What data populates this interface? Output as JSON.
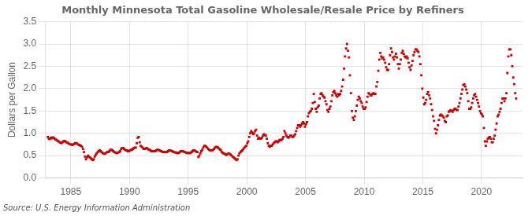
{
  "chart_data": {
    "type": "scatter",
    "title": "Monthly Minnesota Total Gasoline Wholesale/Resale Price by Refiners",
    "y_label": "Dollars per Gallon",
    "annotation": "Source: U.S. Energy Information Administration",
    "grid": true,
    "xlim": [
      1982.8,
      2023.5
    ],
    "xticks": [
      1985,
      1990,
      1995,
      2000,
      2005,
      2010,
      2015,
      2020
    ],
    "ylim": [
      0.0,
      3.5
    ],
    "yticks": [
      {
        "value": 0,
        "label": "0.0"
      },
      0.5,
      {
        "value": 1,
        "label": "1.0"
      },
      1.5,
      {
        "value": 2,
        "label": "2.0"
      },
      2.5,
      {
        "value": 3,
        "label": "3.0"
      },
      3.5
    ],
    "x": [
      1983.0416667,
      1983.125,
      1983.2083333,
      1983.2916667,
      1983.375,
      1983.4583333,
      1983.5416667,
      1983.625,
      1983.7083333,
      1983.7916667,
      1983.875,
      1983.9583333,
      1984.0416667,
      1984.125,
      1984.2083333,
      1984.2916667,
      1984.375,
      1984.4583333,
      1984.5416667,
      1984.625,
      1984.7083333,
      1984.7916667,
      1984.875,
      1984.9583333,
      1985.0416667,
      1985.125,
      1985.2083333,
      1985.2916667,
      1985.375,
      1985.4583333,
      1985.5416667,
      1985.625,
      1985.7083333,
      1985.7916667,
      1985.875,
      1985.9583333,
      1986.0416667,
      1986.125,
      1986.2083333,
      1986.2916667,
      1986.375,
      1986.4583333,
      1986.5416667,
      1986.625,
      1986.7083333,
      1986.7916667,
      1986.875,
      1986.9583333,
      1987.0416667,
      1987.125,
      1987.2083333,
      1987.2916667,
      1987.375,
      1987.4583333,
      1987.5416667,
      1987.625,
      1987.7083333,
      1987.7916667,
      1987.875,
      1987.9583333,
      1988.0416667,
      1988.125,
      1988.2083333,
      1988.2916667,
      1988.375,
      1988.4583333,
      1988.5416667,
      1988.625,
      1988.7083333,
      1988.7916667,
      1988.875,
      1988.9583333,
      1989.0416667,
      1989.125,
      1989.2083333,
      1989.2916667,
      1989.375,
      1989.4583333,
      1989.5416667,
      1989.625,
      1989.7083333,
      1989.7916667,
      1989.875,
      1989.9583333,
      1990.0416667,
      1990.125,
      1990.2083333,
      1990.2916667,
      1990.375,
      1990.4583333,
      1990.5416667,
      1990.625,
      1990.7083333,
      1990.7916667,
      1990.875,
      1990.9583333,
      1991.0416667,
      1991.125,
      1991.2083333,
      1991.2916667,
      1991.375,
      1991.4583333,
      1991.5416667,
      1991.625,
      1991.7083333,
      1991.7916667,
      1991.875,
      1991.9583333,
      1992.0416667,
      1992.125,
      1992.2083333,
      1992.2916667,
      1992.375,
      1992.4583333,
      1992.5416667,
      1992.625,
      1992.7083333,
      1992.7916667,
      1992.875,
      1992.9583333,
      1993.0416667,
      1993.125,
      1993.2083333,
      1993.2916667,
      1993.375,
      1993.4583333,
      1993.5416667,
      1993.625,
      1993.7083333,
      1993.7916667,
      1993.875,
      1993.9583333,
      1994.0416667,
      1994.125,
      1994.2083333,
      1994.2916667,
      1994.375,
      1994.4583333,
      1994.5416667,
      1994.625,
      1994.7083333,
      1994.7916667,
      1994.875,
      1994.9583333,
      1995.0416667,
      1995.125,
      1995.2083333,
      1995.2916667,
      1995.375,
      1995.4583333,
      1995.5416667,
      1995.625,
      1995.7083333,
      1995.7916667,
      1995.875,
      1995.9583333,
      1996.0416667,
      1996.125,
      1996.2083333,
      1996.2916667,
      1996.375,
      1996.4583333,
      1996.5416667,
      1996.625,
      1996.7083333,
      1996.7916667,
      1996.875,
      1996.9583333,
      1997.0416667,
      1997.125,
      1997.2083333,
      1997.2916667,
      1997.375,
      1997.4583333,
      1997.5416667,
      1997.625,
      1997.7083333,
      1997.7916667,
      1997.875,
      1997.9583333,
      1998.0416667,
      1998.125,
      1998.2083333,
      1998.2916667,
      1998.375,
      1998.4583333,
      1998.5416667,
      1998.625,
      1998.7083333,
      1998.7916667,
      1998.875,
      1998.9583333,
      1999.0416667,
      1999.125,
      1999.2083333,
      1999.2916667,
      1999.375,
      1999.4583333,
      1999.5416667,
      1999.625,
      1999.7083333,
      1999.7916667,
      1999.875,
      1999.9583333,
      2000.0416667,
      2000.125,
      2000.2083333,
      2000.2916667,
      2000.375,
      2000.4583333,
      2000.5416667,
      2000.625,
      2000.7083333,
      2000.7916667,
      2000.875,
      2000.9583333,
      2001.0416667,
      2001.125,
      2001.2083333,
      2001.2916667,
      2001.375,
      2001.4583333,
      2001.5416667,
      2001.625,
      2001.7083333,
      2001.7916667,
      2001.875,
      2001.9583333,
      2002.0416667,
      2002.125,
      2002.2083333,
      2002.2916667,
      2002.375,
      2002.4583333,
      2002.5416667,
      2002.625,
      2002.7083333,
      2002.7916667,
      2002.875,
      2002.9583333,
      2003.0416667,
      2003.125,
      2003.2083333,
      2003.2916667,
      2003.375,
      2003.4583333,
      2003.5416667,
      2003.625,
      2003.7083333,
      2003.7916667,
      2003.875,
      2003.9583333,
      2004.0416667,
      2004.125,
      2004.2083333,
      2004.2916667,
      2004.375,
      2004.4583333,
      2004.5416667,
      2004.625,
      2004.7083333,
      2004.7916667,
      2004.875,
      2004.9583333,
      2005.0416667,
      2005.125,
      2005.2083333,
      2005.2916667,
      2005.375,
      2005.4583333,
      2005.5416667,
      2005.625,
      2005.7083333,
      2005.7916667,
      2005.875,
      2005.9583333,
      2006.0416667,
      2006.125,
      2006.2083333,
      2006.2916667,
      2006.375,
      2006.4583333,
      2006.5416667,
      2006.625,
      2006.7083333,
      2006.7916667,
      2006.875,
      2006.9583333,
      2007.0416667,
      2007.125,
      2007.2083333,
      2007.2916667,
      2007.375,
      2007.4583333,
      2007.5416667,
      2007.625,
      2007.7083333,
      2007.7916667,
      2007.875,
      2007.9583333,
      2008.0416667,
      2008.125,
      2008.2083333,
      2008.2916667,
      2008.375,
      2008.4583333,
      2008.5416667,
      2008.625,
      2008.7083333,
      2008.7916667,
      2008.875,
      2008.9583333,
      2009.0416667,
      2009.125,
      2009.2083333,
      2009.2916667,
      2009.375,
      2009.4583333,
      2009.5416667,
      2009.625,
      2009.7083333,
      2009.7916667,
      2009.875,
      2009.9583333,
      2010.0416667,
      2010.125,
      2010.2083333,
      2010.2916667,
      2010.375,
      2010.4583333,
      2010.5416667,
      2010.625,
      2010.7083333,
      2010.7916667,
      2010.875,
      2010.9583333,
      2011.0416667,
      2011.125,
      2011.2083333,
      2011.2916667,
      2011.375,
      2011.4583333,
      2011.5416667,
      2011.625,
      2011.7083333,
      2011.7916667,
      2011.875,
      2011.9583333,
      2012.0416667,
      2012.125,
      2012.2083333,
      2012.2916667,
      2012.375,
      2012.4583333,
      2012.5416667,
      2012.625,
      2012.7083333,
      2012.7916667,
      2012.875,
      2012.9583333,
      2013.0416667,
      2013.125,
      2013.2083333,
      2013.2916667,
      2013.375,
      2013.4583333,
      2013.5416667,
      2013.625,
      2013.7083333,
      2013.7916667,
      2013.875,
      2013.9583333,
      2014.0416667,
      2014.125,
      2014.2083333,
      2014.2916667,
      2014.375,
      2014.4583333,
      2014.5416667,
      2014.625,
      2014.7083333,
      2014.7916667,
      2014.875,
      2014.9583333,
      2015.0416667,
      2015.125,
      2015.2083333,
      2015.2916667,
      2015.375,
      2015.4583333,
      2015.5416667,
      2015.625,
      2015.7083333,
      2015.7916667,
      2015.875,
      2015.9583333,
      2016.0416667,
      2016.125,
      2016.2083333,
      2016.2916667,
      2016.375,
      2016.4583333,
      2016.5416667,
      2016.625,
      2016.7083333,
      2016.7916667,
      2016.875,
      2016.9583333,
      2017.0416667,
      2017.125,
      2017.2083333,
      2017.2916667,
      2017.375,
      2017.4583333,
      2017.5416667,
      2017.625,
      2017.7083333,
      2017.7916667,
      2017.875,
      2017.9583333,
      2018.0416667,
      2018.125,
      2018.2083333,
      2018.2916667,
      2018.375,
      2018.4583333,
      2018.5416667,
      2018.625,
      2018.7083333,
      2018.7916667,
      2018.875,
      2018.9583333,
      2019.0416667,
      2019.125,
      2019.2083333,
      2019.2916667,
      2019.375,
      2019.4583333,
      2019.5416667,
      2019.625,
      2019.7083333,
      2019.7916667,
      2019.875,
      2019.9583333,
      2020.0416667,
      2020.125,
      2020.2083333,
      2020.2916667,
      2020.375,
      2020.4583333,
      2020.5416667,
      2020.625,
      2020.7083333,
      2020.7916667,
      2020.875,
      2020.9583333,
      2021.0416667,
      2021.125,
      2021.2083333,
      2021.2916667,
      2021.375,
      2021.4583333,
      2021.5416667,
      2021.625,
      2021.7083333,
      2021.7916667,
      2021.875,
      2021.9583333,
      2022.0416667,
      2022.125,
      2022.2083333,
      2022.2916667,
      2022.375,
      2022.4583333,
      2022.5416667,
      2022.625,
      2022.7083333,
      2022.7916667,
      2022.875,
      2022.9583333
    ],
    "series": [
      {
        "color": "#cc0000",
        "marker": "square",
        "values": [
          0.92,
          0.88,
          0.87,
          0.9,
          0.89,
          0.91,
          0.9,
          0.88,
          0.86,
          0.85,
          0.83,
          0.82,
          0.8,
          0.79,
          0.78,
          0.8,
          0.82,
          0.83,
          0.82,
          0.8,
          0.79,
          0.78,
          0.76,
          0.75,
          0.75,
          0.74,
          0.75,
          0.76,
          0.78,
          0.78,
          0.77,
          0.75,
          0.74,
          0.73,
          0.72,
          0.7,
          0.65,
          0.58,
          0.48,
          0.42,
          0.46,
          0.5,
          0.48,
          0.46,
          0.44,
          0.42,
          0.4,
          0.42,
          0.48,
          0.52,
          0.55,
          0.58,
          0.6,
          0.62,
          0.6,
          0.58,
          0.56,
          0.55,
          0.54,
          0.55,
          0.57,
          0.58,
          0.58,
          0.6,
          0.63,
          0.63,
          0.62,
          0.6,
          0.58,
          0.57,
          0.56,
          0.56,
          0.57,
          0.58,
          0.6,
          0.65,
          0.67,
          0.67,
          0.65,
          0.63,
          0.62,
          0.62,
          0.6,
          0.6,
          0.62,
          0.63,
          0.63,
          0.65,
          0.67,
          0.68,
          0.68,
          0.78,
          0.9,
          0.92,
          0.8,
          0.72,
          0.7,
          0.68,
          0.65,
          0.65,
          0.66,
          0.67,
          0.66,
          0.64,
          0.63,
          0.62,
          0.6,
          0.6,
          0.6,
          0.6,
          0.6,
          0.62,
          0.63,
          0.63,
          0.62,
          0.61,
          0.6,
          0.59,
          0.58,
          0.58,
          0.58,
          0.58,
          0.58,
          0.6,
          0.62,
          0.62,
          0.61,
          0.6,
          0.59,
          0.58,
          0.57,
          0.57,
          0.56,
          0.56,
          0.56,
          0.58,
          0.6,
          0.6,
          0.6,
          0.59,
          0.58,
          0.57,
          0.56,
          0.56,
          0.56,
          0.56,
          0.56,
          0.58,
          0.6,
          0.62,
          0.62,
          0.6,
          0.59,
          0.58,
          0.47,
          0.5,
          0.55,
          0.6,
          0.63,
          0.68,
          0.72,
          0.72,
          0.7,
          0.68,
          0.65,
          0.63,
          0.62,
          0.62,
          0.62,
          0.63,
          0.65,
          0.68,
          0.7,
          0.69,
          0.68,
          0.66,
          0.64,
          0.62,
          0.58,
          0.56,
          0.55,
          0.54,
          0.52,
          0.52,
          0.54,
          0.55,
          0.54,
          0.52,
          0.5,
          0.48,
          0.46,
          0.44,
          0.42,
          0.4,
          0.42,
          0.5,
          0.55,
          0.58,
          0.6,
          0.62,
          0.65,
          0.68,
          0.7,
          0.72,
          0.78,
          0.82,
          0.92,
          1.0,
          1.05,
          1.02,
          0.98,
          1.0,
          1.05,
          1.08,
          0.95,
          0.88,
          0.9,
          0.88,
          0.88,
          0.9,
          0.95,
          0.98,
          0.96,
          0.95,
          0.88,
          0.78,
          0.72,
          0.7,
          0.72,
          0.72,
          0.75,
          0.78,
          0.8,
          0.82,
          0.82,
          0.8,
          0.82,
          0.85,
          0.85,
          0.85,
          0.88,
          0.92,
          1.05,
          1.0,
          0.95,
          0.92,
          0.9,
          0.92,
          0.95,
          0.95,
          0.92,
          0.92,
          0.95,
          0.98,
          1.05,
          1.12,
          1.18,
          1.18,
          1.15,
          1.18,
          1.22,
          1.25,
          1.22,
          1.15,
          1.2,
          1.25,
          1.38,
          1.45,
          1.48,
          1.5,
          1.55,
          1.68,
          1.88,
          1.7,
          1.55,
          1.48,
          1.58,
          1.62,
          1.78,
          1.88,
          1.9,
          1.85,
          1.82,
          1.8,
          1.72,
          1.65,
          1.52,
          1.48,
          1.55,
          1.6,
          1.72,
          1.85,
          1.92,
          1.95,
          1.9,
          1.85,
          1.82,
          1.88,
          1.85,
          1.88,
          1.95,
          2.05,
          2.2,
          2.45,
          2.72,
          2.9,
          3.0,
          2.85,
          2.7,
          2.3,
          1.9,
          1.5,
          1.35,
          1.3,
          1.38,
          1.5,
          1.62,
          1.75,
          1.82,
          1.78,
          1.72,
          1.68,
          1.6,
          1.55,
          1.55,
          1.58,
          1.7,
          1.82,
          1.9,
          1.88,
          1.85,
          1.85,
          1.88,
          1.9,
          1.88,
          1.88,
          2.05,
          2.15,
          2.4,
          2.65,
          2.8,
          2.72,
          2.68,
          2.7,
          2.65,
          2.58,
          2.48,
          2.42,
          2.42,
          2.55,
          2.75,
          2.9,
          2.82,
          2.7,
          2.65,
          2.72,
          2.78,
          2.7,
          2.55,
          2.45,
          2.55,
          2.65,
          2.8,
          2.85,
          2.78,
          2.72,
          2.7,
          2.72,
          2.68,
          2.58,
          2.48,
          2.42,
          2.52,
          2.62,
          2.75,
          2.82,
          2.88,
          2.88,
          2.85,
          2.82,
          2.72,
          2.55,
          2.3,
          2.0,
          1.8,
          1.65,
          1.68,
          1.75,
          1.88,
          1.92,
          1.85,
          1.78,
          1.65,
          1.52,
          1.38,
          1.28,
          1.1,
          1.0,
          1.08,
          1.18,
          1.3,
          1.4,
          1.42,
          1.4,
          1.38,
          1.35,
          1.28,
          1.25,
          1.38,
          1.4,
          1.48,
          1.5,
          1.52,
          1.5,
          1.48,
          1.52,
          1.55,
          1.55,
          1.52,
          1.52,
          1.6,
          1.68,
          1.78,
          1.88,
          1.98,
          2.08,
          2.1,
          2.05,
          1.98,
          1.9,
          1.72,
          1.55,
          1.55,
          1.58,
          1.68,
          1.78,
          1.85,
          1.88,
          1.82,
          1.75,
          1.68,
          1.6,
          1.5,
          1.45,
          1.42,
          1.38,
          1.12,
          0.82,
          0.72,
          0.82,
          0.88,
          0.9,
          0.92,
          0.88,
          0.8,
          0.8,
          0.88,
          0.95,
          1.08,
          1.22,
          1.38,
          1.42,
          1.48,
          1.55,
          1.68,
          1.78,
          1.78,
          1.72,
          1.78,
          1.9,
          2.35,
          2.72,
          2.88,
          2.88,
          2.75,
          2.5,
          2.25,
          2.1,
          1.9,
          1.78
        ]
      }
    ]
  }
}
